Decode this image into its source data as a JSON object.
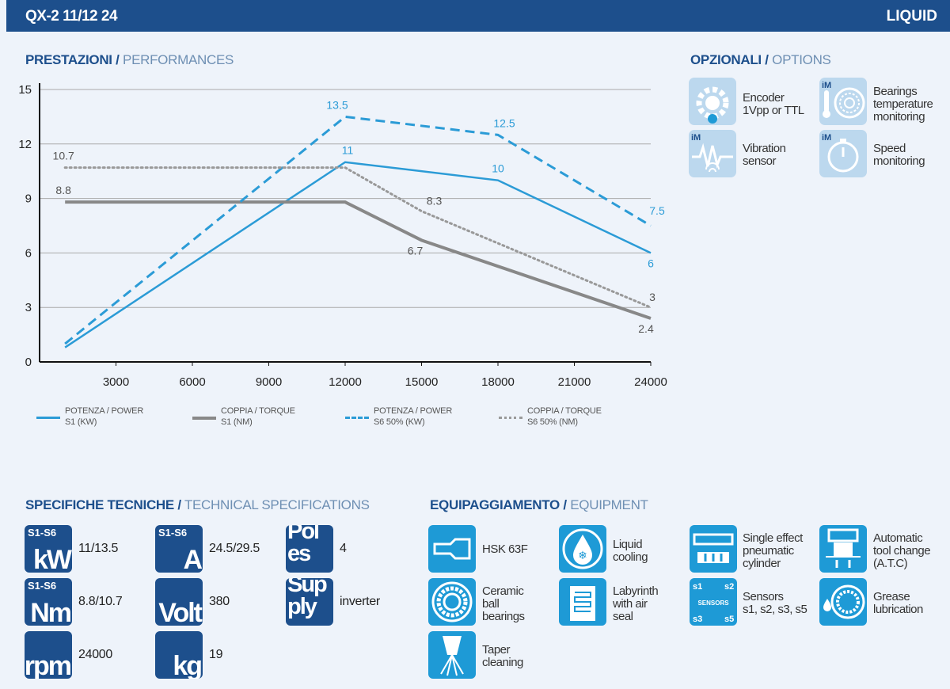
{
  "header": {
    "model": "QX-2 11/12 24",
    "type": "LIQUID"
  },
  "performances": {
    "title_it": "PRESTAZIONI",
    "sep": "/",
    "title_en": "PERFORMANCES"
  },
  "options": {
    "title_it": "OPZIONALI",
    "sep": "/",
    "title_en": "OPTIONS",
    "items": [
      {
        "icon": "encoder-icon",
        "label": "Encoder\n1Vpp or TTL"
      },
      {
        "icon": "bearings-temperature-icon",
        "label": "Bearings\ntemperature\nmonitoring",
        "badge": "iM"
      },
      {
        "icon": "vibration-sensor-icon",
        "label": "Vibration\nsensor",
        "badge": "iM"
      },
      {
        "icon": "speed-monitoring-icon",
        "label": "Speed\nmonitoring",
        "badge": "iM"
      }
    ]
  },
  "specs": {
    "title_it": "SPECIFICHE TECNICHE",
    "sep": "/",
    "title_en": "TECHNICAL SPECIFICATIONS",
    "items": [
      {
        "tag": "S1-S6",
        "unit": "kW",
        "value": "11/13.5"
      },
      {
        "tag": "S1-S6",
        "unit": "A",
        "value": "24.5/29.5"
      },
      {
        "tag": "",
        "unit": "Pol\nes",
        "value": "4"
      },
      {
        "tag": "S1-S6",
        "unit": "Nm",
        "value": "8.8/10.7"
      },
      {
        "tag": "",
        "unit": "Volt",
        "value": "380"
      },
      {
        "tag": "",
        "unit": "Sup\nply",
        "value": "inverter"
      },
      {
        "tag": "",
        "unit": "rpm",
        "value": "24000"
      },
      {
        "tag": "",
        "unit": "kg",
        "value": "19"
      }
    ]
  },
  "equipment": {
    "title_it": "EQUIPAGGIAMENTO",
    "sep": "/",
    "title_en": "EQUIPMENT",
    "items": [
      {
        "icon": "hsk-icon",
        "label": "HSK 63F"
      },
      {
        "icon": "liquid-cooling-icon",
        "label": "Liquid\ncooling"
      },
      {
        "icon": "pneumatic-cylinder-icon",
        "label": "Single effect\npneumatic\ncylinder"
      },
      {
        "icon": "tool-change-icon",
        "label": "Automatic\ntool change\n(A.T.C)"
      },
      {
        "icon": "ceramic-bearings-icon",
        "label": "Ceramic\nball\nbearings"
      },
      {
        "icon": "labyrinth-seal-icon",
        "label": "Labyrinth\nwith air\nseal"
      },
      {
        "icon": "sensors-icon",
        "label": "Sensors\ns1, s2, s3, s5",
        "sensor_tags": [
          "s1",
          "s2",
          "SENSORS",
          "s3",
          "s5"
        ]
      },
      {
        "icon": "grease-lubrication-icon",
        "label": "Grease\nlubrication"
      },
      {
        "icon": "taper-cleaning-icon",
        "label": "Taper\ncleaning"
      }
    ]
  },
  "colors": {
    "brand": "#1d4f8c",
    "power": "#2b9bd6",
    "torque_s1": "#888888",
    "torque_s6": "#999999",
    "grid": "#aaaaaa"
  },
  "chart_data": {
    "type": "line",
    "xlim": [
      0,
      24000
    ],
    "ylim": [
      0,
      15
    ],
    "xticks": [
      3000,
      6000,
      9000,
      12000,
      15000,
      18000,
      21000,
      24000
    ],
    "yticks": [
      0,
      3,
      6,
      9,
      12,
      15
    ],
    "grid": true,
    "legend_position": "bottom",
    "series": [
      {
        "name": "POTENZA / POWER\nS1 (KW)",
        "color": "#2b9bd6",
        "style": "solid",
        "x": [
          1000,
          12000,
          18000,
          24000
        ],
        "y": [
          0.8,
          11,
          10,
          6
        ],
        "labels": [
          null,
          "11",
          "10",
          "6"
        ]
      },
      {
        "name": "COPPIA / TORQUE\nS1 (NM)",
        "color": "#888888",
        "style": "solid",
        "x": [
          1000,
          12000,
          15000,
          24000
        ],
        "y": [
          8.8,
          8.8,
          6.7,
          2.4
        ],
        "labels": [
          "8.8",
          null,
          "6.7",
          "2.4"
        ]
      },
      {
        "name": "POTENZA / POWER\nS6 50% (KW)",
        "color": "#2b9bd6",
        "style": "dashed",
        "x": [
          1000,
          12000,
          18000,
          24000
        ],
        "y": [
          1,
          13.5,
          12.5,
          7.5
        ],
        "labels": [
          null,
          "13.5",
          "12.5",
          "7.5"
        ]
      },
      {
        "name": "COPPIA / TORQUE\nS6 50% (NM)",
        "color": "#999999",
        "style": "dotted",
        "x": [
          1000,
          12000,
          15000,
          24000
        ],
        "y": [
          10.7,
          10.7,
          8.3,
          3
        ],
        "labels": [
          "10.7",
          null,
          "8.3",
          "3"
        ]
      }
    ]
  }
}
